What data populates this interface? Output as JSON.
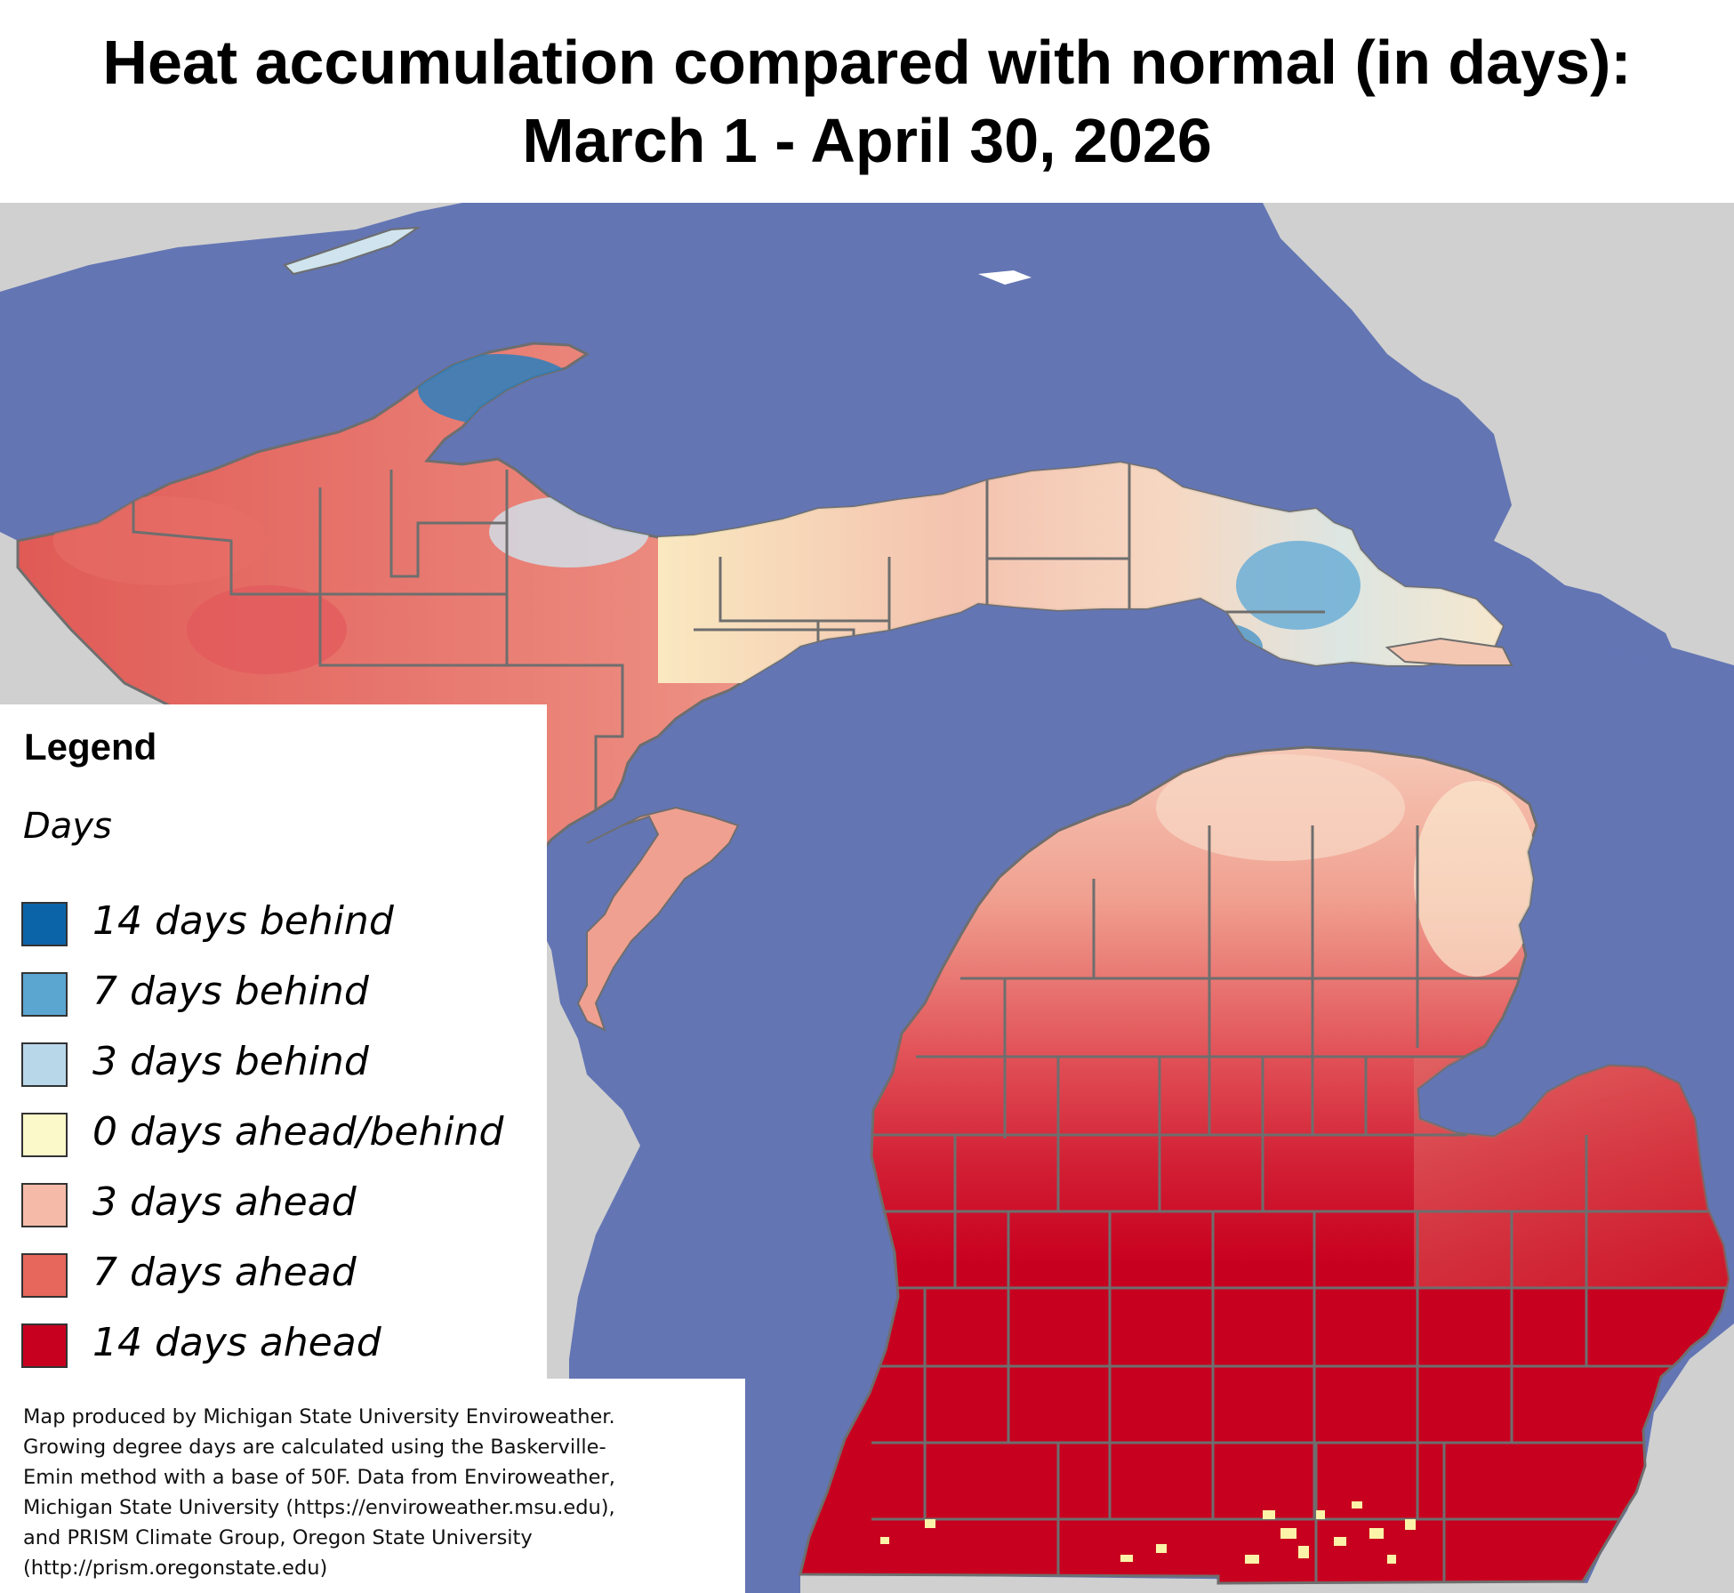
{
  "title": {
    "line1": "Heat accumulation compared with normal (in days):",
    "line2": "March 1 - April 30, 2026"
  },
  "map": {
    "region": "Michigan",
    "colors": {
      "water": "#6375b3",
      "neighbor_land": "#d0d0d0",
      "county_border": "#6e6e6e"
    },
    "category_scale": [
      -14,
      -7,
      -3,
      0,
      3,
      7,
      14
    ]
  },
  "legend": {
    "title": "Legend",
    "subtitle": "Days",
    "items": [
      {
        "label": "14 days behind",
        "value": -14,
        "color": "#0b64a8"
      },
      {
        "label": "7 days behind",
        "value": -7,
        "color": "#5ba6d0"
      },
      {
        "label": "3 days behind",
        "value": -3,
        "color": "#b8d8ea"
      },
      {
        "label": "0 days ahead/behind",
        "value": 0,
        "color": "#fbf8c9"
      },
      {
        "label": "3 days ahead",
        "value": 3,
        "color": "#f5bba8"
      },
      {
        "label": "7 days ahead",
        "value": 7,
        "color": "#e7675c"
      },
      {
        "label": "14 days ahead",
        "value": 14,
        "color": "#c8001f"
      }
    ]
  },
  "credit": {
    "lines": [
      "Map produced by Michigan State University Enviroweather.",
      "Growing degree days are calculated using the Baskerville-",
      "Emin method with a base of 50F.  Data from Enviroweather,",
      "Michigan State University (https://enviroweather.msu.edu),",
      "and PRISM Climate Group, Oregon State University",
      "(http://prism.oregonstate.edu)"
    ]
  }
}
